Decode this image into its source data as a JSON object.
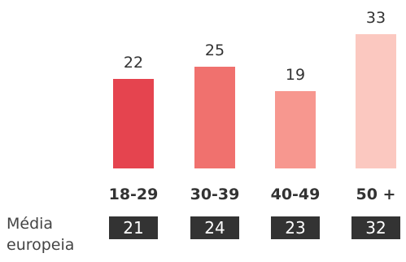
{
  "chart_data": {
    "type": "bar",
    "categories": [
      "18-29",
      "30-39",
      "40-49",
      "50 +"
    ],
    "values": [
      22,
      25,
      19,
      33
    ],
    "colors": [
      "#e5444f",
      "#f0716e",
      "#f7978f",
      "#fbc8c0"
    ],
    "ylim": [
      0,
      33
    ]
  },
  "european_average": {
    "label": "Média europeia",
    "values": [
      "21",
      "24",
      "23",
      "32"
    ]
  }
}
